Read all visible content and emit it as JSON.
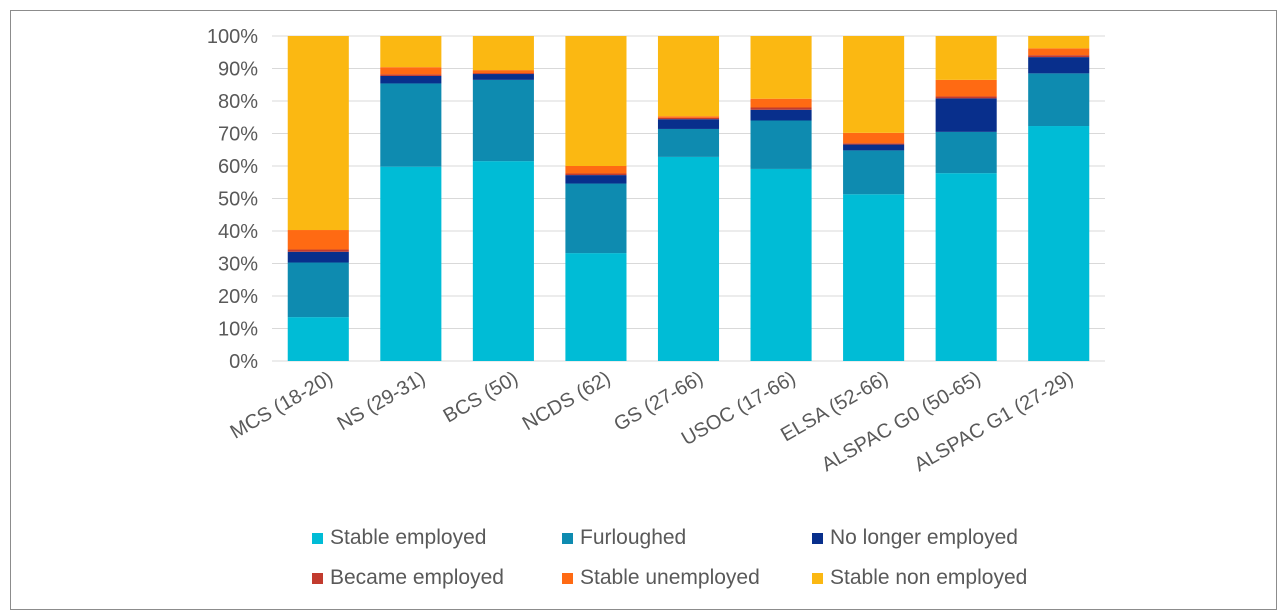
{
  "chart_data": {
    "type": "bar",
    "stacked": true,
    "categories": [
      "MCS (18-20)",
      "NS (29-31)",
      "BCS (50)",
      "NCDS (62)",
      "GS (27-66)",
      "USOC (17-66)",
      "ELSA (52-66)",
      "ALSPAC G0 (50-65)",
      "ALSPAC G1 (27-29)"
    ],
    "series": [
      {
        "name": "Stable employed",
        "color": "#00bcd6",
        "values": [
          13.5,
          59.8,
          61.5,
          33.2,
          62.8,
          59.1,
          51.3,
          57.8,
          72.3
        ]
      },
      {
        "name": "Furloughed",
        "color": "#0e8bb0",
        "values": [
          16.8,
          25.6,
          25.0,
          21.4,
          8.6,
          14.9,
          13.5,
          12.7,
          16.2
        ]
      },
      {
        "name": "No longer employed",
        "color": "#082f8c",
        "values": [
          3.3,
          2.3,
          1.8,
          2.6,
          3.0,
          3.3,
          1.8,
          10.3,
          5.0
        ]
      },
      {
        "name": "Became employed",
        "color": "#c23b2e",
        "values": [
          0.7,
          0.5,
          0.3,
          0.5,
          0.4,
          0.7,
          0.4,
          0.6,
          0.6
        ]
      },
      {
        "name": "Stable unemployed",
        "color": "#ff6a13",
        "values": [
          6.0,
          2.2,
          0.9,
          2.3,
          0.5,
          2.7,
          3.2,
          5.1,
          2.1
        ]
      },
      {
        "name": "Stable non employed",
        "color": "#fbb812",
        "values": [
          59.7,
          9.6,
          10.5,
          40.0,
          24.7,
          19.3,
          29.8,
          13.5,
          3.8
        ]
      }
    ],
    "yticks": [
      "0%",
      "10%",
      "20%",
      "30%",
      "40%",
      "50%",
      "60%",
      "70%",
      "80%",
      "90%",
      "100%"
    ],
    "ylim": [
      0,
      100
    ],
    "grid": true,
    "legend_position": "bottom"
  }
}
